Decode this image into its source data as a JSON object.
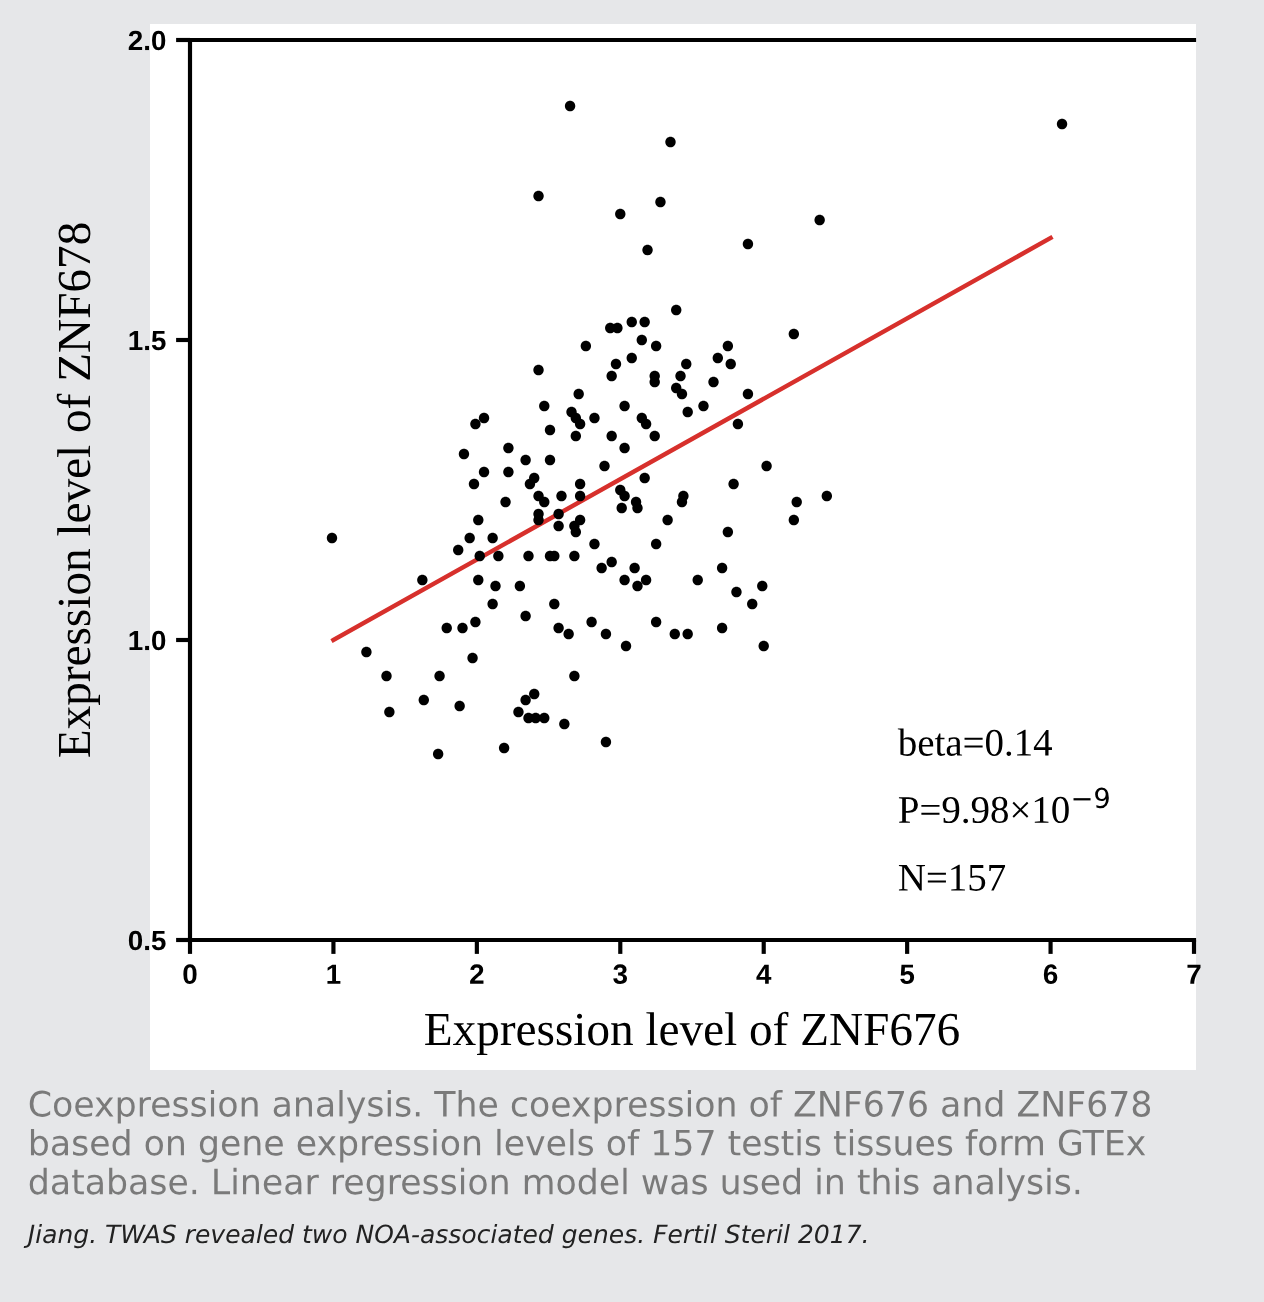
{
  "chart_data": {
    "type": "scatter",
    "xlabel": "Expression level of ZNF676",
    "ylabel": "Expression level of ZNF678",
    "xlim": [
      0,
      7
    ],
    "ylim": [
      0.5,
      2.0
    ],
    "xticks": [
      0,
      1,
      2,
      3,
      4,
      5,
      6,
      7
    ],
    "yticks": [
      {
        "value": 0.5,
        "label": "0.5"
      },
      {
        "value": 1.0,
        "label": "1.0"
      },
      {
        "value": 1.5,
        "label": "1.5"
      },
      {
        "value": 2.0,
        "label": "2.0"
      }
    ],
    "annotations": [
      "beta=0.14",
      "P=9.98×10$^{−9}$",
      "N=157",
      "Coexpression analysis. The coexpression of ZNF676 and ZNF678 based on gene expression levels of 157 testis tissues form GTEx database. Linear regression model was used in this analysis.",
      "Jiang. TWAS revealed two NOA-associated genes. Fertil Steril 2017."
    ],
    "series": [
      {
        "color": "#000000",
        "marker": "circle",
        "x": [
          2.65,
          3.35,
          2.43,
          3.28,
          3.0,
          3.19,
          3.39,
          2.93,
          2.98,
          3.08,
          3.17,
          2.76,
          3.15,
          3.25,
          2.43,
          2.97,
          3.08,
          2.94,
          3.24,
          3.24,
          3.46,
          3.42,
          3.39,
          3.43,
          3.47,
          2.71,
          2.47,
          2.66,
          2.69,
          2.82,
          3.03,
          1.99,
          2.05,
          2.51,
          2.72,
          2.69,
          3.15,
          3.18,
          3.24,
          2.94,
          2.22,
          1.91,
          2.34,
          2.51,
          3.03,
          2.89,
          1.98,
          2.05,
          2.22,
          2.37,
          2.4,
          2.72,
          3.17,
          2.59,
          2.72,
          2.2,
          2.43,
          2.47,
          2.57,
          2.72,
          3.0,
          3.03,
          3.11,
          3.12,
          3.01,
          3.43,
          3.33,
          2.01,
          2.43,
          2.43,
          2.57,
          2.68,
          2.69,
          0.99,
          1.87,
          1.95,
          2.11,
          2.02,
          2.15,
          2.36,
          2.51,
          2.54,
          2.68,
          2.82,
          3.25,
          3.54,
          1.62,
          2.01,
          2.13,
          2.3,
          2.87,
          2.94,
          3.03,
          3.1,
          3.12,
          3.18,
          2.11,
          2.54,
          2.34,
          1.79,
          1.9,
          1.99,
          2.57,
          2.64,
          2.8,
          2.9,
          3.04,
          3.25,
          3.38,
          3.47,
          1.23,
          1.97,
          1.37,
          1.74,
          2.68,
          1.63,
          1.88,
          1.39,
          2.34,
          2.4,
          2.29,
          2.36,
          2.41,
          2.47,
          2.61,
          2.9,
          1.73,
          2.19,
          6.08,
          4.39,
          3.89,
          4.21,
          3.75,
          3.68,
          3.77,
          3.65,
          3.89,
          3.58,
          3.82,
          4.02,
          3.79,
          4.44,
          3.44,
          4.23,
          4.21,
          3.75,
          3.71,
          3.81,
          3.99,
          3.92,
          3.71,
          4.0
        ],
        "values": [
          1.89,
          1.83,
          1.74,
          1.73,
          1.71,
          1.65,
          1.55,
          1.52,
          1.52,
          1.53,
          1.53,
          1.49,
          1.5,
          1.49,
          1.45,
          1.46,
          1.47,
          1.44,
          1.44,
          1.43,
          1.46,
          1.44,
          1.42,
          1.41,
          1.38,
          1.41,
          1.39,
          1.38,
          1.37,
          1.37,
          1.39,
          1.36,
          1.37,
          1.35,
          1.36,
          1.34,
          1.37,
          1.36,
          1.34,
          1.34,
          1.32,
          1.31,
          1.3,
          1.3,
          1.32,
          1.29,
          1.26,
          1.28,
          1.28,
          1.26,
          1.27,
          1.26,
          1.27,
          1.24,
          1.24,
          1.23,
          1.24,
          1.23,
          1.21,
          1.2,
          1.25,
          1.24,
          1.23,
          1.22,
          1.22,
          1.23,
          1.2,
          1.2,
          1.21,
          1.2,
          1.19,
          1.19,
          1.18,
          1.17,
          1.15,
          1.17,
          1.17,
          1.14,
          1.14,
          1.14,
          1.14,
          1.14,
          1.14,
          1.16,
          1.16,
          1.1,
          1.1,
          1.1,
          1.09,
          1.09,
          1.12,
          1.13,
          1.1,
          1.12,
          1.09,
          1.1,
          1.06,
          1.06,
          1.04,
          1.02,
          1.02,
          1.03,
          1.02,
          1.01,
          1.03,
          1.01,
          0.99,
          1.03,
          1.01,
          1.01,
          0.98,
          0.97,
          0.94,
          0.94,
          0.94,
          0.9,
          0.89,
          0.88,
          0.9,
          0.91,
          0.88,
          0.87,
          0.87,
          0.87,
          0.86,
          0.83,
          0.81,
          0.82,
          1.86,
          1.7,
          1.66,
          1.51,
          1.49,
          1.47,
          1.46,
          1.43,
          1.41,
          1.39,
          1.36,
          1.29,
          1.26,
          1.24,
          1.24,
          1.23,
          1.2,
          1.18,
          1.12,
          1.08,
          1.09,
          1.06,
          1.02,
          0.99
        ]
      },
      {
        "type": "line",
        "color": "#d7302c",
        "x": [
          1,
          6
        ],
        "values": [
          1.0,
          1.67
        ]
      }
    ]
  }
}
